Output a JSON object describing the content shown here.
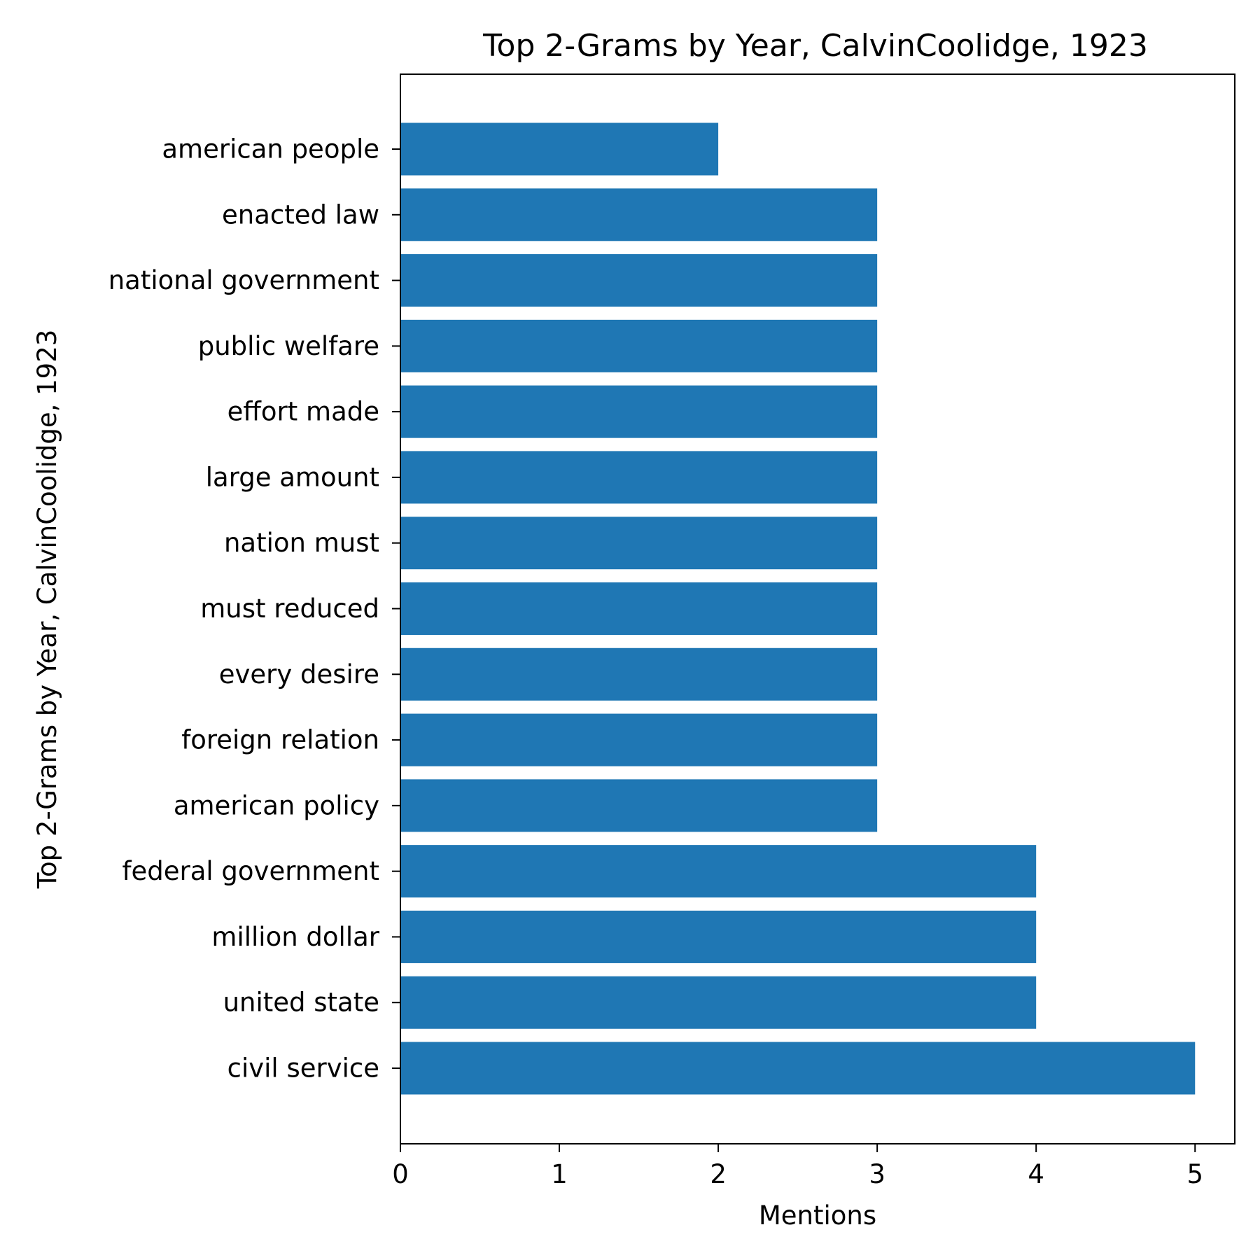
{
  "chart_data": {
    "type": "bar",
    "orientation": "horizontal",
    "title": "Top 2-Grams by Year, CalvinCoolidge, 1923",
    "xlabel": "Mentions",
    "ylabel": "Top 2-Grams by Year, CalvinCoolidge, 1923",
    "categories": [
      "american people",
      "enacted law",
      "national government",
      "public welfare",
      "effort made",
      "large amount",
      "nation must",
      "must reduced",
      "every desire",
      "foreign relation",
      "american policy",
      "federal government",
      "million dollar",
      "united state",
      "civil service"
    ],
    "values": [
      2,
      3,
      3,
      3,
      3,
      3,
      3,
      3,
      3,
      3,
      3,
      4,
      4,
      4,
      5
    ],
    "xlim": [
      0,
      5.25
    ],
    "xticks": [
      0,
      1,
      2,
      3,
      4,
      5
    ],
    "grid": false,
    "colors": {
      "bar": "#1f77b4",
      "axes": "#000000",
      "background": "#ffffff"
    }
  }
}
